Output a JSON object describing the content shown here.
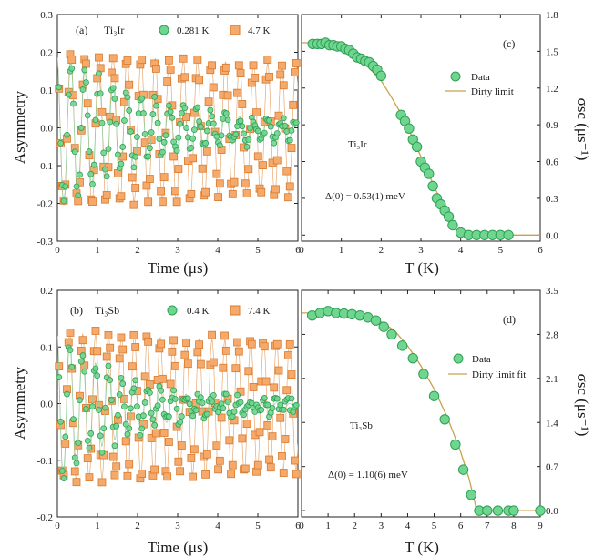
{
  "colors": {
    "orange_fill": "#f5a96a",
    "orange_edge": "#d77a2e",
    "green_fill": "#6fd68f",
    "green_edge": "#2f9e55",
    "fit_line": "#c8a24a",
    "axis": "#222222"
  },
  "chart_data": [
    {
      "id": "a",
      "type": "line",
      "panel_label": "(a)",
      "sample": "Ti₃Ir",
      "xlabel": "Time (μs)",
      "ylabel": "Asymmetry",
      "xlim": [
        0,
        6
      ],
      "ylim": [
        -0.3,
        0.3
      ],
      "xticks": [
        "0",
        "1",
        "2",
        "3",
        "4",
        "5",
        "6"
      ],
      "yticks": [
        "0.3",
        "0.2",
        "0.1",
        "0.0",
        "-0.1",
        "-0.2",
        "-0.3"
      ],
      "series": [
        {
          "name": "0.281 K",
          "color": "green",
          "amplitude": 0.2,
          "offset": -0.005,
          "frequency_mhz": 2.85,
          "relaxation_us": 2.6,
          "noise": 0.015
        },
        {
          "name": "4.7 K",
          "color": "orange",
          "amplitude": 0.2,
          "offset": -0.005,
          "frequency_mhz": 2.85,
          "relaxation_us": 40,
          "noise": 0.012
        }
      ]
    },
    {
      "id": "b",
      "type": "line",
      "panel_label": "(b)",
      "sample": "Ti₃Sb",
      "xlabel": "Time (μs)",
      "ylabel": "Asymmetry",
      "xlim": [
        0,
        6
      ],
      "ylim": [
        -0.2,
        0.2
      ],
      "xticks": [
        "0",
        "1",
        "2",
        "3",
        "4",
        "5",
        "6"
      ],
      "yticks": [
        "0.2",
        "0.1",
        "0.0",
        "-0.1",
        "-0.2"
      ],
      "series": [
        {
          "name": "0.4 K",
          "color": "green",
          "amplitude": 0.13,
          "offset": -0.005,
          "frequency_mhz": 3.1,
          "relaxation_us": 1.8,
          "noise": 0.012
        },
        {
          "name": "7.4 K",
          "color": "orange",
          "amplitude": 0.13,
          "offset": -0.005,
          "frequency_mhz": 3.1,
          "relaxation_us": 40,
          "noise": 0.01
        }
      ]
    },
    {
      "id": "c",
      "type": "scatter",
      "panel_label": "(c)",
      "sample": "Ti₃Ir",
      "gap_label": "Δ(0) = 0.53(1)  meV",
      "xlabel": "T (K)",
      "ylabel": "σsc (μs⁻¹)",
      "xlim": [
        0,
        6
      ],
      "ylim": [
        -0.05,
        1.8
      ],
      "xticks": [
        "0",
        "1",
        "2",
        "3",
        "4",
        "5",
        "6"
      ],
      "yticks": [
        "1.8",
        "1.5",
        "1.2",
        "0.9",
        "0.6",
        "0.3",
        "0.0"
      ],
      "legend": [
        "Data",
        "Dirty limit"
      ],
      "series": [
        {
          "name": "Data",
          "x": [
            0.28,
            0.4,
            0.5,
            0.6,
            0.7,
            0.8,
            0.9,
            1.0,
            1.1,
            1.2,
            1.3,
            1.4,
            1.5,
            1.6,
            1.7,
            1.8,
            1.9,
            2.0,
            2.5,
            2.6,
            2.7,
            2.8,
            2.9,
            3.0,
            3.1,
            3.2,
            3.3,
            3.4,
            3.5,
            3.6,
            3.7,
            3.8,
            4.0,
            4.2,
            4.4,
            4.6,
            4.8,
            5.0,
            5.2
          ],
          "y": [
            1.56,
            1.56,
            1.56,
            1.57,
            1.55,
            1.55,
            1.54,
            1.54,
            1.52,
            1.51,
            1.48,
            1.45,
            1.44,
            1.42,
            1.41,
            1.38,
            1.35,
            1.3,
            0.98,
            0.93,
            0.87,
            0.78,
            0.72,
            0.6,
            0.55,
            0.5,
            0.4,
            0.3,
            0.25,
            0.2,
            0.15,
            0.08,
            0.02,
            0.0,
            0.0,
            0.0,
            0.0,
            0.0,
            0.0
          ]
        },
        {
          "name": "Dirty limit",
          "x": [
            0,
            0.5,
            1.0,
            1.5,
            2.0,
            2.25,
            2.5,
            2.75,
            3.0,
            3.25,
            3.5,
            3.7,
            3.85,
            3.95,
            4.0,
            4.5,
            5.0,
            5.5,
            6.0
          ],
          "y": [
            1.57,
            1.57,
            1.54,
            1.43,
            1.26,
            1.13,
            0.99,
            0.82,
            0.64,
            0.46,
            0.28,
            0.15,
            0.06,
            0.01,
            0.0,
            0.0,
            0.0,
            0.0,
            0.0
          ]
        }
      ]
    },
    {
      "id": "d",
      "type": "scatter",
      "panel_label": "(d)",
      "sample": "Ti₃Sb",
      "gap_label": "Δ(0) = 1.10(6)  meV",
      "xlabel": "T (K)",
      "ylabel": "σsc (μs⁻¹)",
      "xlim": [
        0,
        9
      ],
      "ylim": [
        -0.1,
        3.5
      ],
      "xticks": [
        "0",
        "1",
        "2",
        "3",
        "4",
        "5",
        "6",
        "7",
        "8",
        "9"
      ],
      "yticks": [
        "3.5",
        "2.8",
        "2.1",
        "1.4",
        "0.7",
        "0.0"
      ],
      "legend": [
        "Data",
        "Dirty limit fit"
      ],
      "series": [
        {
          "name": "Data",
          "x": [
            0.4,
            0.7,
            1.0,
            1.3,
            1.6,
            1.9,
            2.2,
            2.5,
            2.8,
            3.1,
            3.4,
            3.8,
            4.2,
            4.6,
            5.0,
            5.4,
            5.8,
            6.1,
            6.4,
            6.7,
            7.0,
            7.4,
            7.8,
            8.0,
            9.0
          ],
          "y": [
            3.1,
            3.14,
            3.17,
            3.14,
            3.13,
            3.12,
            3.1,
            3.07,
            3.02,
            2.92,
            2.8,
            2.62,
            2.42,
            2.17,
            1.82,
            1.45,
            1.05,
            0.65,
            0.25,
            0.0,
            0.0,
            0.0,
            0.0,
            0.0,
            0.0
          ]
        },
        {
          "name": "Dirty limit fit",
          "x": [
            0,
            1.0,
            2.0,
            2.5,
            3.0,
            3.5,
            4.0,
            4.5,
            5.0,
            5.5,
            6.0,
            6.3,
            6.5,
            6.6,
            7.0,
            8.0,
            9.0
          ],
          "y": [
            3.14,
            3.14,
            3.12,
            3.09,
            3.0,
            2.86,
            2.62,
            2.3,
            1.93,
            1.48,
            0.93,
            0.53,
            0.2,
            0.0,
            0.0,
            0.0,
            0.0
          ]
        }
      ]
    }
  ]
}
